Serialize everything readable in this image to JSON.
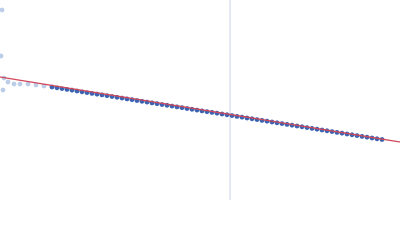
{
  "chart_data": {
    "type": "scatter",
    "xlim": [
      0,
      400
    ],
    "ylim": [
      0,
      200
    ],
    "vline": 230,
    "vline_color": "#c9d3e6",
    "series": [
      {
        "type": "scatter",
        "color": "#bccde8",
        "x": [
          2,
          1,
          4,
          3,
          8,
          14,
          20,
          28,
          36,
          44
        ],
        "values": [
          190,
          144,
          122,
          110,
          118,
          116,
          116,
          116,
          115,
          114
        ]
      },
      {
        "type": "scatter",
        "color": "#3a64b2",
        "x": [
          52,
          57,
          62,
          67,
          72,
          77,
          82,
          87,
          92,
          97,
          102,
          107,
          112,
          117,
          122,
          127,
          132,
          137,
          142,
          147,
          152,
          157,
          162,
          167,
          172,
          177,
          182,
          187,
          192,
          197,
          202,
          207,
          212,
          217,
          222,
          227,
          232,
          237,
          242,
          247,
          252,
          257,
          262,
          267,
          272,
          277,
          282,
          287,
          292,
          297,
          302,
          307,
          312,
          317,
          322,
          327,
          332,
          337,
          342,
          347,
          352,
          357,
          362,
          367,
          372,
          377,
          382
        ],
        "values": [
          113.0,
          112.2,
          111.4,
          110.6,
          109.8,
          109.0,
          108.2,
          107.4,
          106.6,
          105.8,
          105.1,
          104.3,
          103.5,
          102.7,
          101.9,
          101.1,
          100.3,
          99.5,
          98.7,
          97.9,
          97.1,
          96.3,
          95.5,
          94.7,
          93.9,
          93.1,
          92.3,
          91.5,
          90.7,
          89.9,
          89.1,
          88.3,
          87.6,
          86.8,
          86.0,
          85.2,
          84.4,
          83.6,
          82.8,
          82.0,
          81.2,
          80.4,
          79.6,
          78.8,
          78.0,
          77.2,
          76.4,
          75.6,
          74.8,
          74.0,
          73.2,
          72.4,
          71.6,
          70.8,
          70.0,
          69.2,
          68.4,
          67.6,
          66.8,
          66.0,
          65.2,
          64.4,
          63.6,
          62.8,
          62.0,
          61.2,
          60.5
        ]
      },
      {
        "type": "line",
        "color": "#d0485a",
        "x": [
          0,
          400
        ],
        "values": [
          123,
          58
        ]
      }
    ]
  }
}
